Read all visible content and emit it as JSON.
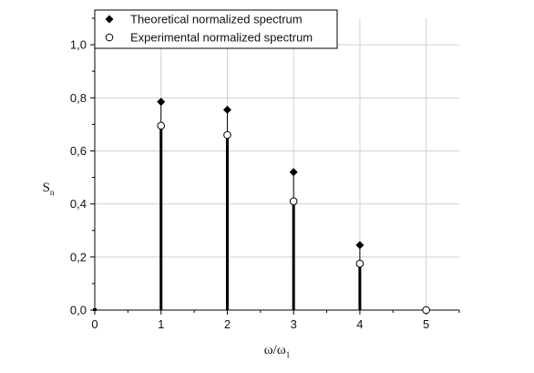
{
  "chart_data": {
    "type": "scatter",
    "title": "",
    "xlabel": "ω/ω",
    "xlabel_sub": "1",
    "ylabel": "S",
    "ylabel_sub": "n",
    "xlim": [
      0,
      5.5
    ],
    "ylim": [
      0,
      1.1
    ],
    "x_ticks": [
      0,
      1,
      2,
      3,
      4,
      5
    ],
    "x_tick_labels": [
      "0",
      "1",
      "2",
      "3",
      "4",
      "5"
    ],
    "y_ticks": [
      0,
      0.2,
      0.4,
      0.6,
      0.8,
      1.0
    ],
    "y_tick_labels": [
      "0,0",
      "0,2",
      "0,4",
      "0,6",
      "0,8",
      "1,0"
    ],
    "grid": true,
    "legend_position": "top-left",
    "series": [
      {
        "name": "Theoretical normalized spectrum",
        "marker": "filled-diamond",
        "x": [
          1,
          2,
          3,
          4
        ],
        "values": [
          0.785,
          0.755,
          0.52,
          0.245
        ]
      },
      {
        "name": "Experimental normalized spectrum",
        "marker": "open-circle",
        "x": [
          1,
          2,
          3,
          4,
          5
        ],
        "values": [
          0.695,
          0.66,
          0.41,
          0.175,
          0.0
        ]
      }
    ],
    "stems": {
      "x": [
        0,
        1,
        2,
        3,
        4
      ],
      "values": [
        0,
        0.695,
        0.66,
        0.41,
        0.175
      ]
    }
  }
}
